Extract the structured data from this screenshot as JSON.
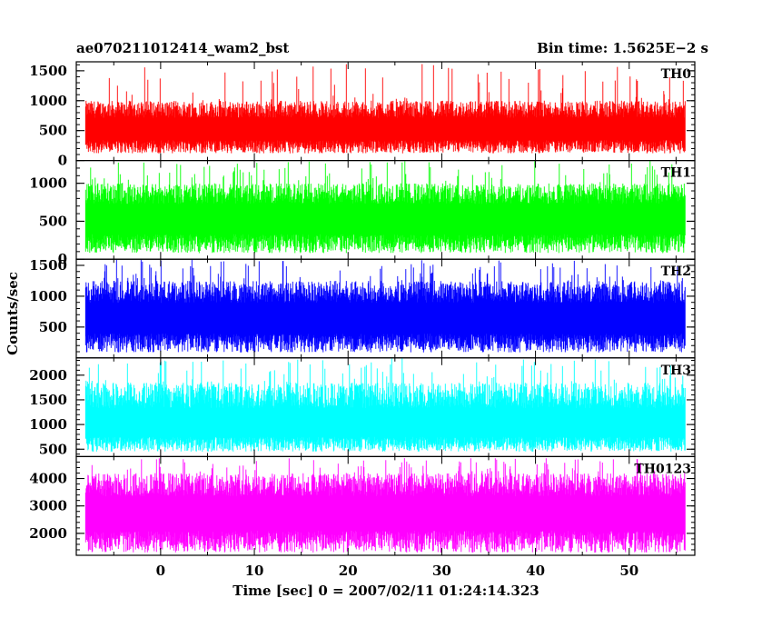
{
  "header": {
    "title": "ae070211012414_wam2_bst",
    "bin_time": "Bin time: 1.5625E−2 s"
  },
  "chart_data": {
    "type": "line",
    "subtype": "stacked light curves",
    "xlabel": "Time [sec] 0 = 2007/02/11 01:24:14.323",
    "ylabel": "Counts/sec",
    "xlim": [
      -9,
      57
    ],
    "data_x_range": [
      -8,
      56
    ],
    "x_ticks": [
      0,
      10,
      20,
      30,
      40,
      50
    ],
    "bin_time": 0.015625,
    "grid": false,
    "panels": [
      {
        "label": "TH0",
        "color": "#ff0000",
        "ylim": [
          0,
          1650
        ],
        "y_ticks": [
          0,
          500,
          1000,
          1500
        ],
        "baseline": 120,
        "mean": 560,
        "envelope_max": 1000,
        "peak_max": 1620
      },
      {
        "label": "TH1",
        "color": "#00ff00",
        "ylim": [
          0,
          1300
        ],
        "y_ticks": [
          0,
          500,
          1000
        ],
        "baseline": 80,
        "mean": 580,
        "envelope_max": 1000,
        "peak_max": 1300
      },
      {
        "label": "TH2",
        "color": "#0000ff",
        "ylim": [
          0,
          1600
        ],
        "y_ticks": [
          500,
          1000,
          1500
        ],
        "baseline": 90,
        "mean": 700,
        "envelope_max": 1250,
        "peak_max": 1600
      },
      {
        "label": "TH3",
        "color": "#00ffff",
        "ylim": [
          350,
          2350
        ],
        "y_ticks": [
          500,
          1000,
          1500,
          2000
        ],
        "baseline": 450,
        "mean": 1050,
        "envelope_max": 1850,
        "peak_max": 2350
      },
      {
        "label": "TH0123",
        "color": "#ff00ff",
        "ylim": [
          1200,
          4800
        ],
        "y_ticks": [
          2000,
          3000,
          4000
        ],
        "baseline": 1300,
        "mean": 2900,
        "envelope_max": 4200,
        "peak_max": 4750
      }
    ]
  }
}
